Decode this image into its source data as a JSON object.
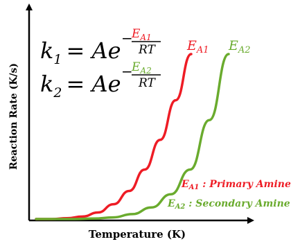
{
  "colors": {
    "red": "#ee1c25",
    "green": "#6aab2e",
    "axis": "#000000"
  },
  "chart_data": {
    "type": "line",
    "xlabel": "Temperature (K)",
    "ylabel": "Reaction Rate (K/s)",
    "x_ticks": [],
    "y_ticks": [],
    "grid": false,
    "series": [
      {
        "name": "E_A1",
        "color": "#ee1c25",
        "x": [
          0.0,
          0.1,
          0.2,
          0.3,
          0.4,
          0.5,
          0.6,
          0.7,
          0.8,
          0.9,
          1.0
        ],
        "y": [
          0.0,
          0.0,
          0.005,
          0.015,
          0.04,
          0.09,
          0.17,
          0.3,
          0.48,
          0.72,
          1.0
        ]
      },
      {
        "name": "E_A2",
        "color": "#6aab2e",
        "x": [
          0.0,
          0.1,
          0.2,
          0.3,
          0.4,
          0.5,
          0.6,
          0.7,
          0.8,
          0.9,
          1.0
        ],
        "y": [
          0.0,
          0.0,
          0.0,
          0.003,
          0.01,
          0.03,
          0.07,
          0.15,
          0.3,
          0.6,
          1.0
        ]
      }
    ],
    "equations": [
      {
        "lhs": "k",
        "sub": "1",
        "rhs": "= Ae",
        "sign": "−",
        "num_base": "E",
        "num_sub": "A1",
        "den": "RT"
      },
      {
        "lhs": "k",
        "sub": "2",
        "rhs": "= Ae",
        "sign": "−",
        "num_base": "E",
        "num_sub": "A2",
        "den": "RT"
      }
    ],
    "curve_labels": [
      {
        "base": "E",
        "sub": "A1"
      },
      {
        "base": "E",
        "sub": "A2"
      }
    ],
    "legend": [
      {
        "base": "E",
        "sub": "A1",
        "text": " : Primary Amine"
      },
      {
        "base": "E",
        "sub": "A2",
        "text": " : Secondary Amine"
      }
    ]
  }
}
